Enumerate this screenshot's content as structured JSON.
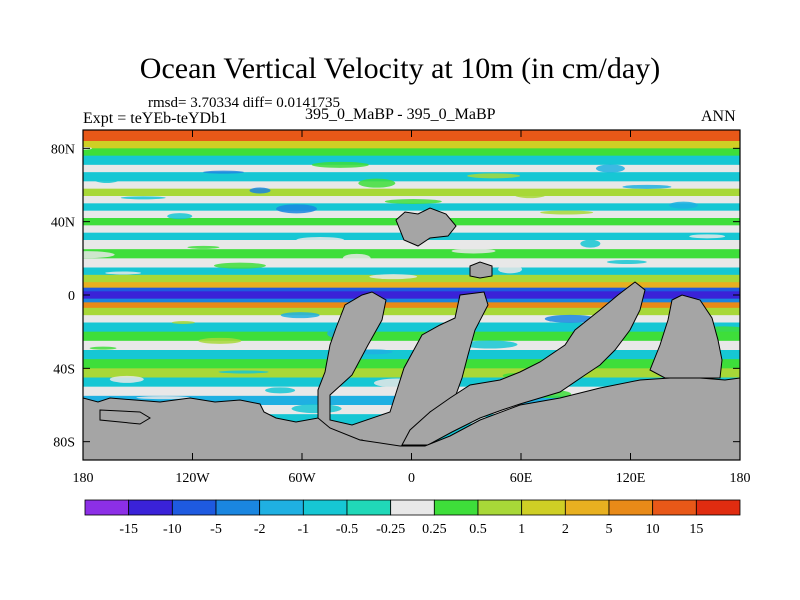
{
  "title": "Ocean Vertical Velocity at 10m (in cm/day)",
  "stats_line": "rmsd= 3.70334 diff= 0.0141735",
  "left_label": "Expt = teYEb-teYDb1",
  "center_label": "395_0_MaBP - 395_0_MaBP",
  "right_label": "ANN",
  "chart_data": {
    "type": "heatmap",
    "title": "Ocean Vertical Velocity at 10m (in cm/day)",
    "units": "cm/day",
    "x_ticks": [
      "180",
      "120W",
      "60W",
      "0",
      "60E",
      "120E",
      "180"
    ],
    "y_ticks": [
      "80N",
      "40N",
      "0",
      "40S",
      "80S"
    ],
    "xlim": [
      -180,
      180
    ],
    "ylim": [
      -90,
      90
    ],
    "colorbar_levels": [
      "-15",
      "-10",
      "-5",
      "-2",
      "-1",
      "-0.5",
      "-0.25",
      "0.25",
      "0.5",
      "1",
      "2",
      "5",
      "10",
      "15"
    ],
    "colorbar_colors": [
      "#8c2fe6",
      "#3a22d8",
      "#1e5ae0",
      "#1a86e0",
      "#1fb0e2",
      "#16c7d4",
      "#20d8b8",
      "#e8e8e8",
      "#3ede3a",
      "#a8d838",
      "#cfcf25",
      "#e8b020",
      "#e88a18",
      "#e85818",
      "#e02c10"
    ],
    "land_color": "#a5a5a5",
    "features": [
      "strong downwelling (negative) band along the equator",
      "upwelling (positive) bands flanking the equator",
      "alternating positive/negative zonal bands at mid-latitudes",
      "Southern Ocean mixed patterns near 40S-60S"
    ]
  }
}
